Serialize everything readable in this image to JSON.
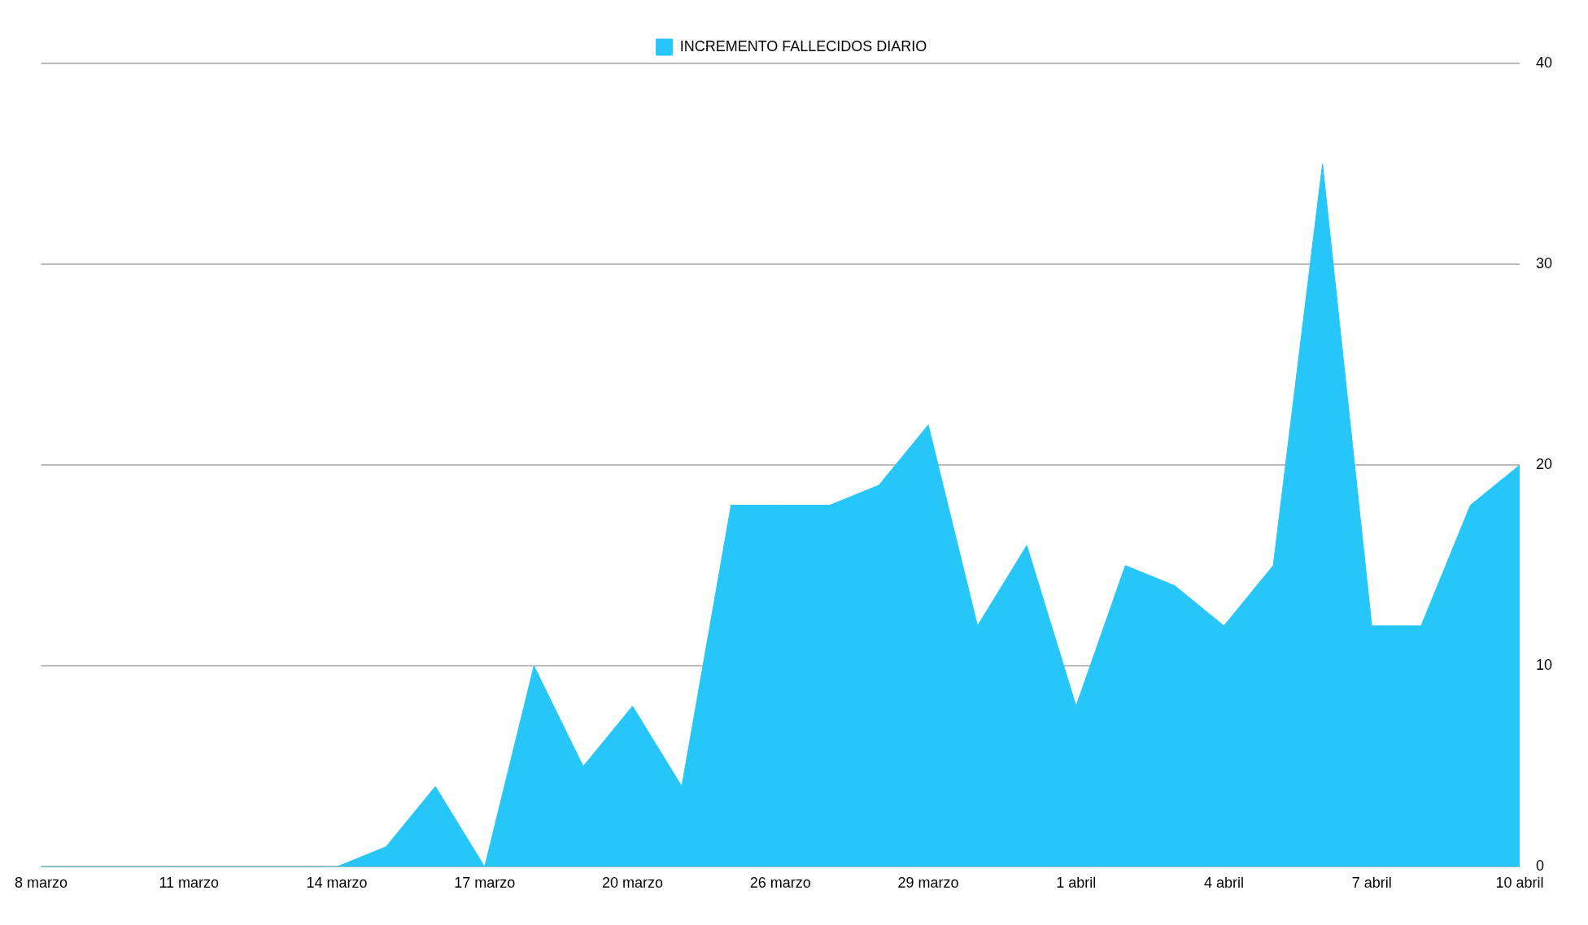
{
  "chart_data": {
    "type": "area",
    "categories": [
      "8 marzo",
      null,
      null,
      "11 marzo",
      null,
      null,
      "14 marzo",
      null,
      null,
      "17 marzo",
      null,
      null,
      "20 marzo",
      null,
      null,
      "26 marzo",
      null,
      null,
      "29 marzo",
      null,
      null,
      "1 abril",
      null,
      null,
      "4 abril",
      null,
      null,
      "7 abril",
      null,
      null,
      "10 abril"
    ],
    "series": [
      {
        "name": "INCREMENTO FALLECIDOS DIARIO",
        "color": "#26c6f9",
        "values": [
          0,
          0,
          0,
          0,
          0,
          0,
          0,
          1,
          4,
          0,
          10,
          5,
          8,
          4,
          18,
          18,
          18,
          19,
          22,
          12,
          16,
          8,
          15,
          14,
          12,
          15,
          35,
          12,
          12,
          18,
          20
        ]
      }
    ],
    "ylim": [
      0,
      40
    ],
    "yticks": [
      0,
      10,
      20,
      30,
      40
    ],
    "grid": "y",
    "legend": "top"
  }
}
